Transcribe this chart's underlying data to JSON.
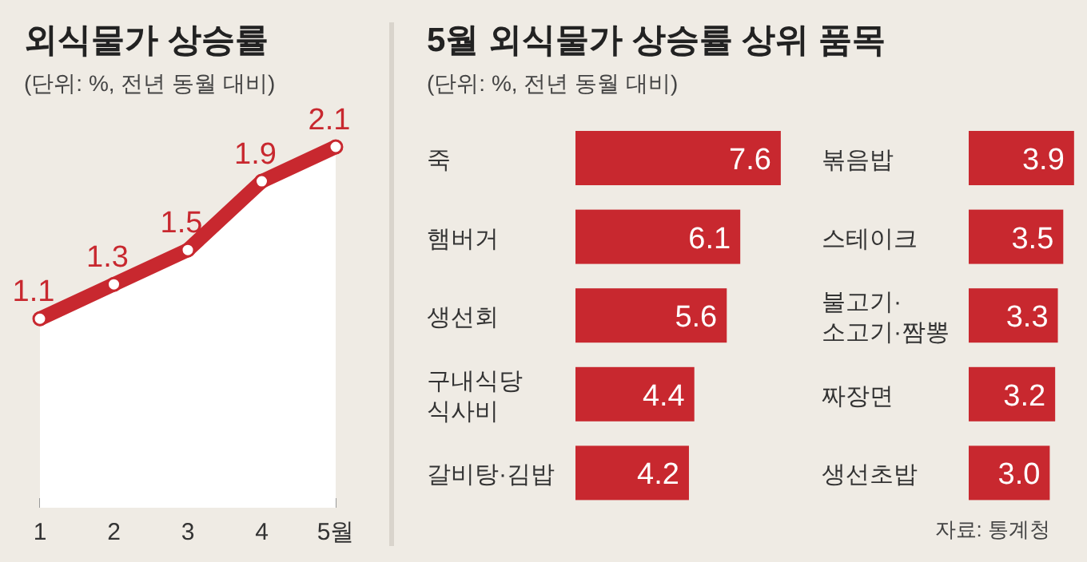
{
  "chart_data": [
    {
      "type": "area",
      "title": "외식물가 상승률",
      "subtitle": "(단위: %, 전년 동월 대비)",
      "categories": [
        "1",
        "2",
        "3",
        "4",
        "5월"
      ],
      "series": [
        {
          "color": "#c8282f",
          "values": [
            1.1,
            1.3,
            1.5,
            1.9,
            2.1
          ]
        }
      ],
      "data_labels": true,
      "marker": "circle",
      "line_style": "solid"
    },
    {
      "type": "bar",
      "orientation": "horizontal",
      "title": "5월 외식물가 상승률 상위 품목",
      "subtitle": "(단위: %, 전년 동월 대비)",
      "categories": [
        "죽",
        "햄버거",
        "생선회",
        "구내식당\n식사비",
        "갈비탕·김밥"
      ],
      "series": [
        {
          "color": "#c8282f",
          "values": [
            7.6,
            6.1,
            5.6,
            4.4,
            4.2
          ]
        }
      ],
      "data_labels": true
    },
    {
      "type": "bar",
      "orientation": "horizontal",
      "categories": [
        "볶음밥",
        "스테이크",
        "불고기·\n소고기·짬뽕",
        "짜장면",
        "생선초밥"
      ],
      "series": [
        {
          "color": "#c8282f",
          "values": [
            3.9,
            3.5,
            3.3,
            3.2,
            3.0
          ],
          "value_labels": [
            "3.9",
            "3.5",
            "3.3",
            "3.2",
            "3.0"
          ]
        }
      ],
      "annotations": [
        "자료: 통계청"
      ]
    }
  ]
}
